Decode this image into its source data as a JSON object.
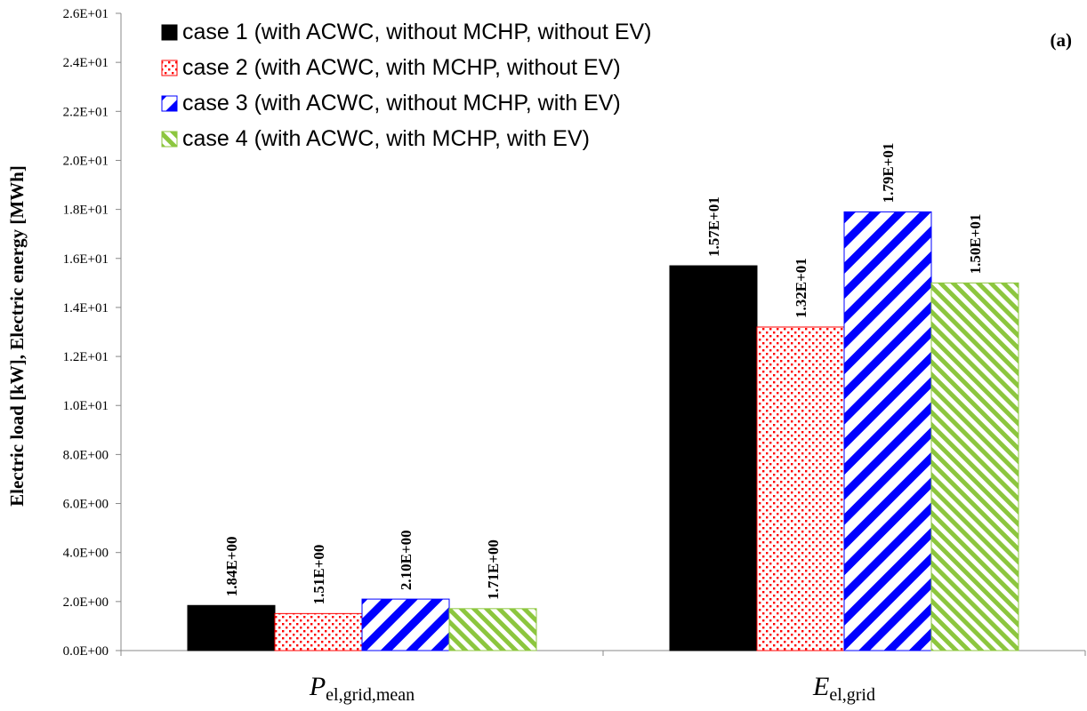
{
  "chart_data": {
    "type": "bar",
    "panel_label": "(a)",
    "ylabel": "Electric load [kW], Electric energy [MWh]",
    "ylim": [
      0,
      26
    ],
    "yticks": [
      "0.0E+00",
      "2.0E+00",
      "4.0E+00",
      "6.0E+00",
      "8.0E+00",
      "1.0E+01",
      "1.2E+01",
      "1.4E+01",
      "1.6E+01",
      "1.8E+01",
      "2.0E+01",
      "2.2E+01",
      "2.4E+01",
      "2.6E+01"
    ],
    "grid": false,
    "legend_position": "top-left",
    "categories": [
      {
        "main": "P",
        "sub": "el,grid,mean"
      },
      {
        "main": "E",
        "sub": "el,grid"
      }
    ],
    "series": [
      {
        "name": "case 1 (with ACWC, without MCHP, without EV)",
        "values": [
          1.84,
          15.7
        ],
        "labels": [
          "1.84E+00",
          "1.57E+01"
        ],
        "color": "#000000",
        "pattern": "solid"
      },
      {
        "name": "case 2 (with ACWC, with MCHP, without  EV)",
        "values": [
          1.51,
          13.2
        ],
        "labels": [
          "1.51E+00",
          "1.32E+01"
        ],
        "color": "#ff0000",
        "pattern": "dots"
      },
      {
        "name": "case 3 (with ACWC, without MCHP, with EV)",
        "values": [
          2.1,
          17.9
        ],
        "labels": [
          "2.10E+00",
          "1.79E+01"
        ],
        "color": "#0000ff",
        "pattern": "wide-diagonal"
      },
      {
        "name": "case 4 (with ACWC, with MCHP, with EV)",
        "values": [
          1.71,
          15.0
        ],
        "labels": [
          "1.71E+00",
          "1.50E+01"
        ],
        "color": "#8cc63e",
        "pattern": "diagonal"
      }
    ]
  }
}
